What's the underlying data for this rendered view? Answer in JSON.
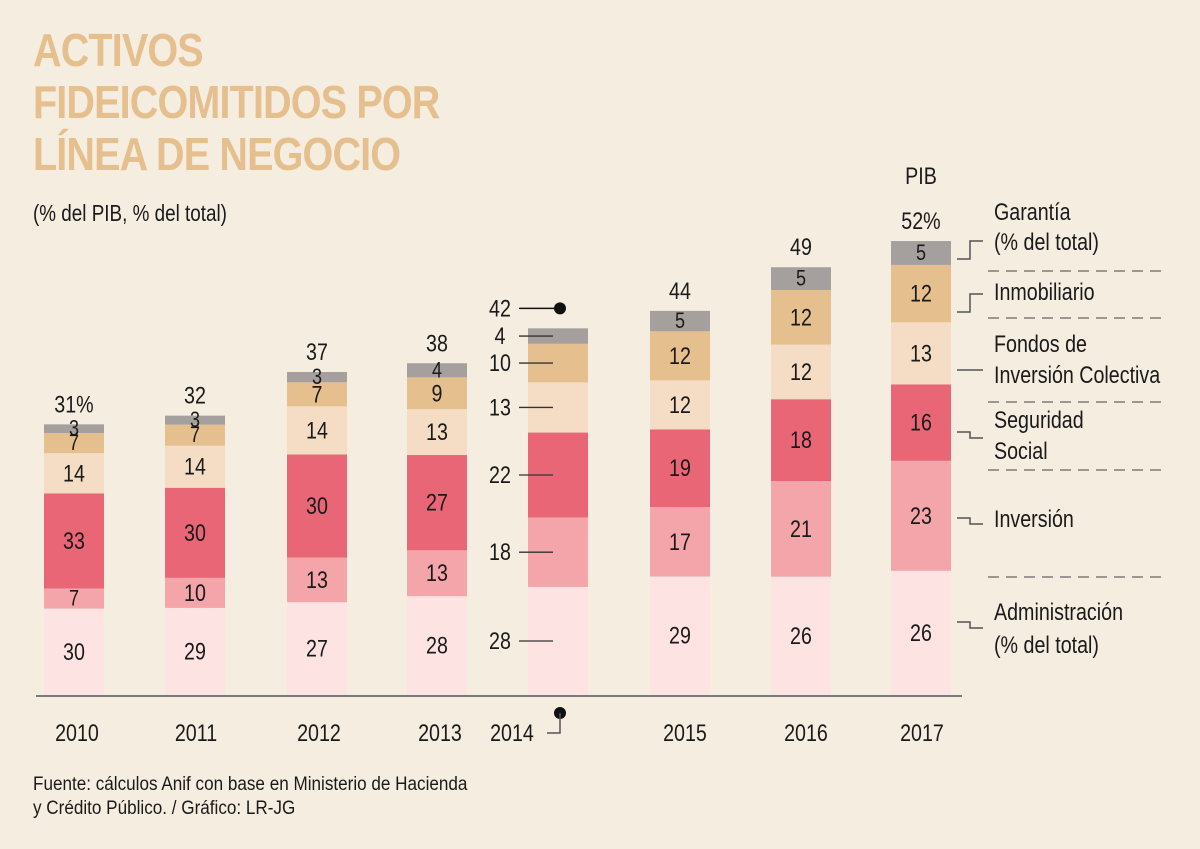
{
  "title_lines": [
    "ACTIVOS",
    "FIDEICOMITIDOS POR",
    "LÍNEA DE NEGOCIO"
  ],
  "subtitle": "(% del PIB, % del total)",
  "source_lines": [
    "Fuente: cálculos Anif con base en Ministerio de Hacienda",
    "y Crédito Público. / Gráfico: LR-JG"
  ],
  "pib_label": "PIB",
  "chart_data": {
    "type": "bar",
    "stacked": true,
    "title": "ACTIVOS FIDEICOMITIDOS POR LÍNEA DE NEGOCIO",
    "subtitle": "(% del PIB, % del total)",
    "xlabel": "",
    "ylabel": "% del PIB",
    "categories": [
      "2010",
      "2011",
      "2012",
      "2013",
      "2014",
      "2015",
      "2016",
      "2017"
    ],
    "totals_pib": [
      31,
      32,
      37,
      38,
      42,
      44,
      49,
      52
    ],
    "total_labels": [
      "31%",
      "32",
      "37",
      "38",
      "42",
      "44",
      "49",
      "52%"
    ],
    "series": [
      {
        "name": "Administración (% del total)",
        "color": "#fde4e3",
        "values": [
          30,
          29,
          27,
          28,
          28,
          29,
          26,
          26
        ]
      },
      {
        "name": "Inversión",
        "color": "#f3a5aa",
        "values": [
          7,
          10,
          13,
          13,
          18,
          17,
          21,
          23
        ]
      },
      {
        "name": "Seguridad Social",
        "color": "#e96677",
        "values": [
          33,
          30,
          30,
          27,
          22,
          19,
          18,
          16
        ]
      },
      {
        "name": "Fondos de Inversión Colectiva",
        "color": "#f4ddc4",
        "values": [
          14,
          14,
          14,
          13,
          13,
          12,
          12,
          13
        ]
      },
      {
        "name": "Inmobiliario",
        "color": "#e6bf8f",
        "values": [
          7,
          7,
          7,
          9,
          10,
          12,
          12,
          12
        ]
      },
      {
        "name": "Garantía (% del total)",
        "color": "#a5a09e",
        "values": [
          3,
          3,
          3,
          4,
          4,
          5,
          5,
          5
        ]
      }
    ],
    "legend": [
      {
        "lines": [
          "Garantía",
          "(% del total)"
        ]
      },
      {
        "lines": [
          "Inmobiliario"
        ]
      },
      {
        "lines": [
          "Fondos de",
          "Inversión Colectiva"
        ]
      },
      {
        "lines": [
          "Seguridad",
          "Social"
        ]
      },
      {
        "lines": [
          "Inversión"
        ]
      },
      {
        "lines": [
          "Administración",
          "(% del total)"
        ]
      }
    ],
    "legend_placement": "right",
    "ylim": [
      0,
      52
    ],
    "grid": false,
    "callout_category": "2014"
  }
}
